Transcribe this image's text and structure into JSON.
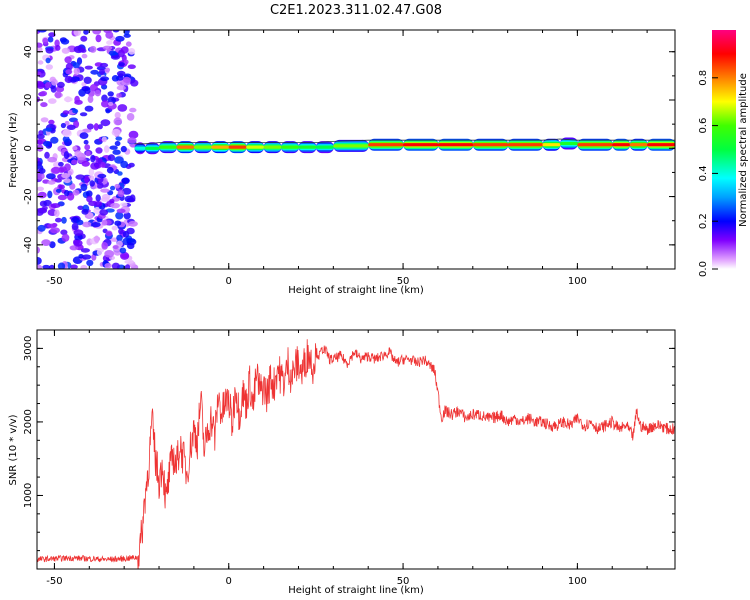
{
  "title": "C2E1.2023.311.02.47.G08",
  "chart_data": [
    {
      "type": "heatmap",
      "xlabel": "Height of straight line (km)",
      "ylabel": "Frequency (Hz)",
      "xlim": [
        -55,
        128
      ],
      "ylim": [
        -50,
        49
      ],
      "xticks": [
        -50,
        0,
        50,
        100
      ],
      "yticks": [
        -40,
        -20,
        0,
        20,
        40
      ],
      "noise_region_x": [
        -55,
        -27
      ],
      "ridge": [
        {
          "x": -27,
          "y": 0,
          "amp": 0.45
        },
        {
          "x": -24,
          "y": 0,
          "amp": 0.55
        },
        {
          "x": -20,
          "y": 0.5,
          "amp": 0.65
        },
        {
          "x": -15,
          "y": 0.5,
          "amp": 0.9
        },
        {
          "x": -10,
          "y": 0.5,
          "amp": 0.7
        },
        {
          "x": -5,
          "y": 0.5,
          "amp": 0.85
        },
        {
          "x": 0,
          "y": 0.5,
          "amp": 0.95
        },
        {
          "x": 5,
          "y": 0.5,
          "amp": 0.75
        },
        {
          "x": 10,
          "y": 0.5,
          "amp": 0.7
        },
        {
          "x": 15,
          "y": 0.5,
          "amp": 0.65
        },
        {
          "x": 20,
          "y": 0.5,
          "amp": 0.6
        },
        {
          "x": 25,
          "y": 0.5,
          "amp": 0.55
        },
        {
          "x": 30,
          "y": 1.0,
          "amp": 0.7
        },
        {
          "x": 40,
          "y": 1.5,
          "amp": 0.95
        },
        {
          "x": 50,
          "y": 1.5,
          "amp": 1.0
        },
        {
          "x": 60,
          "y": 1.5,
          "amp": 1.0
        },
        {
          "x": 70,
          "y": 1.5,
          "amp": 0.95
        },
        {
          "x": 80,
          "y": 1.5,
          "amp": 0.95
        },
        {
          "x": 90,
          "y": 1.5,
          "amp": 0.8
        },
        {
          "x": 95,
          "y": 2.0,
          "amp": 0.6
        },
        {
          "x": 100,
          "y": 1.5,
          "amp": 0.95
        },
        {
          "x": 110,
          "y": 1.5,
          "amp": 1.0
        },
        {
          "x": 115,
          "y": 1.5,
          "amp": 0.9
        },
        {
          "x": 120,
          "y": 1.5,
          "amp": 1.0
        },
        {
          "x": 128,
          "y": 1.5,
          "amp": 1.0
        }
      ],
      "colorbar": {
        "label": "Normalized spectral amplitude",
        "ticks": [
          "0.0",
          "0.2",
          "0.4",
          "0.6",
          "0.8"
        ],
        "range": [
          0,
          1
        ]
      }
    },
    {
      "type": "line",
      "xlabel": "Height of straight line (km)",
      "ylabel": "SNR (10 * v/v)",
      "xlim": [
        -55,
        128
      ],
      "ylim": [
        0,
        3250
      ],
      "xticks": [
        -50,
        0,
        50,
        100
      ],
      "yticks": [
        1000,
        2000,
        3000
      ],
      "color": "#ee3333",
      "series": [
        {
          "x": [
            -55,
            -45,
            -35,
            -30,
            -26,
            -25,
            -24,
            -23,
            -22,
            -21,
            -20,
            -19,
            -18,
            -17,
            -16,
            -15,
            -14,
            -13,
            -12,
            -11,
            -10,
            -9,
            -8,
            -7,
            -6,
            -5,
            -4,
            -3,
            -2,
            -1,
            0,
            1,
            2,
            3,
            4,
            5,
            6,
            7,
            8,
            9,
            10,
            11,
            12,
            13,
            14,
            15,
            16,
            17,
            18,
            19,
            20,
            21,
            22,
            23,
            24,
            25,
            26,
            27,
            28,
            29,
            30,
            32,
            34,
            36,
            38,
            40,
            42,
            44,
            46,
            48,
            50,
            52,
            54,
            56,
            57,
            58,
            59,
            60,
            61,
            62,
            64,
            66,
            68,
            70,
            72,
            74,
            76,
            78,
            80,
            82,
            84,
            86,
            88,
            90,
            92,
            94,
            96,
            98,
            100,
            102,
            104,
            106,
            108,
            110,
            112,
            114,
            116,
            117,
            118,
            120,
            122,
            124,
            126,
            128
          ],
          "y": [
            130,
            150,
            130,
            140,
            160,
            450,
            1000,
            1400,
            2000,
            1500,
            1200,
            1450,
            900,
            1300,
            1550,
            1400,
            1700,
            1500,
            1300,
            1650,
            1900,
            1750,
            2300,
            1600,
            1900,
            2050,
            1800,
            2350,
            2100,
            2250,
            2300,
            1950,
            2500,
            2100,
            2400,
            2250,
            2550,
            2200,
            2650,
            2400,
            2500,
            2350,
            2600,
            2500,
            2750,
            2600,
            2550,
            2800,
            2600,
            2750,
            2800,
            2650,
            2850,
            2950,
            2750,
            2950,
            2900,
            3000,
            2950,
            2850,
            2850,
            2900,
            2800,
            2950,
            2850,
            2900,
            2850,
            2900,
            2950,
            2800,
            2850,
            2850,
            2800,
            2850,
            2800,
            2750,
            2700,
            2400,
            2050,
            2150,
            2100,
            2150,
            2050,
            2100,
            2100,
            2050,
            2050,
            2100,
            2000,
            2050,
            2000,
            2050,
            2000,
            2000,
            1950,
            1950,
            2000,
            1950,
            2050,
            1950,
            2000,
            1900,
            1950,
            2000,
            1900,
            1950,
            1800,
            2150,
            1950,
            1900,
            1950,
            1950,
            1900,
            1900
          ]
        }
      ]
    }
  ]
}
